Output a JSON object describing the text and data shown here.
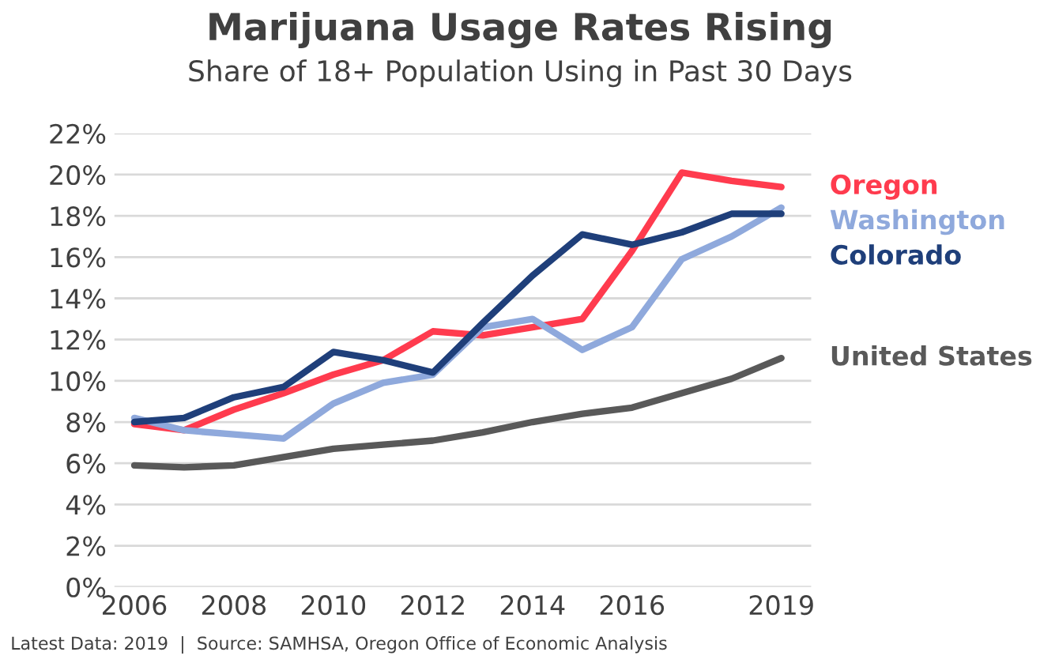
{
  "chart_data": {
    "type": "line",
    "title": "Marijuana Usage Rates Rising",
    "subtitle": "Share of 18+ Population Using in Past 30 Days",
    "x": [
      2006,
      2007,
      2008,
      2009,
      2010,
      2011,
      2012,
      2013,
      2014,
      2015,
      2016,
      2017,
      2018,
      2019
    ],
    "series": [
      {
        "name": "Oregon",
        "color": "#ff3b4e",
        "values": [
          7.9,
          7.6,
          8.6,
          9.4,
          10.3,
          11.0,
          12.4,
          12.2,
          12.6,
          13.0,
          16.3,
          20.1,
          19.7,
          19.4
        ]
      },
      {
        "name": "Washington",
        "color": "#8fa9dc",
        "values": [
          8.2,
          7.6,
          7.4,
          7.2,
          8.9,
          9.9,
          10.3,
          12.6,
          13.0,
          11.5,
          12.6,
          15.9,
          17.0,
          18.4
        ]
      },
      {
        "name": "Colorado",
        "color": "#1f3f7a",
        "values": [
          8.0,
          8.2,
          9.2,
          9.7,
          11.4,
          11.0,
          10.4,
          12.8,
          15.1,
          17.1,
          16.6,
          17.2,
          18.1,
          18.1
        ]
      },
      {
        "name": "United States",
        "color": "#595959",
        "values": [
          5.9,
          5.8,
          5.9,
          6.3,
          6.7,
          6.9,
          7.1,
          7.5,
          8.0,
          8.4,
          8.7,
          9.4,
          10.1,
          11.1
        ]
      }
    ],
    "xlim": [
      2005.6,
      2019.6
    ],
    "xticks": [
      2006,
      2008,
      2010,
      2012,
      2014,
      2016,
      2019
    ],
    "ylim": [
      0,
      22
    ],
    "yticks": [
      {
        "value": 0,
        "label": "0%"
      },
      {
        "value": 2,
        "label": "2%"
      },
      {
        "value": 4,
        "label": "4%"
      },
      {
        "value": 6,
        "label": "6%"
      },
      {
        "value": 8,
        "label": "8%"
      },
      {
        "value": 10,
        "label": "10%"
      },
      {
        "value": 12,
        "label": "12%"
      },
      {
        "value": 14,
        "label": "14%"
      },
      {
        "value": 16,
        "label": "16%"
      },
      {
        "value": 18,
        "label": "18%"
      },
      {
        "value": 20,
        "label": "20%"
      },
      {
        "value": 22,
        "label": "22%"
      }
    ],
    "grid": "y",
    "legend": false,
    "marker": "none",
    "line_style": "solid",
    "annotations": [
      "Latest Data: 2019  |  Source: SAMHSA, Oregon Office of Economic Analysis"
    ]
  }
}
